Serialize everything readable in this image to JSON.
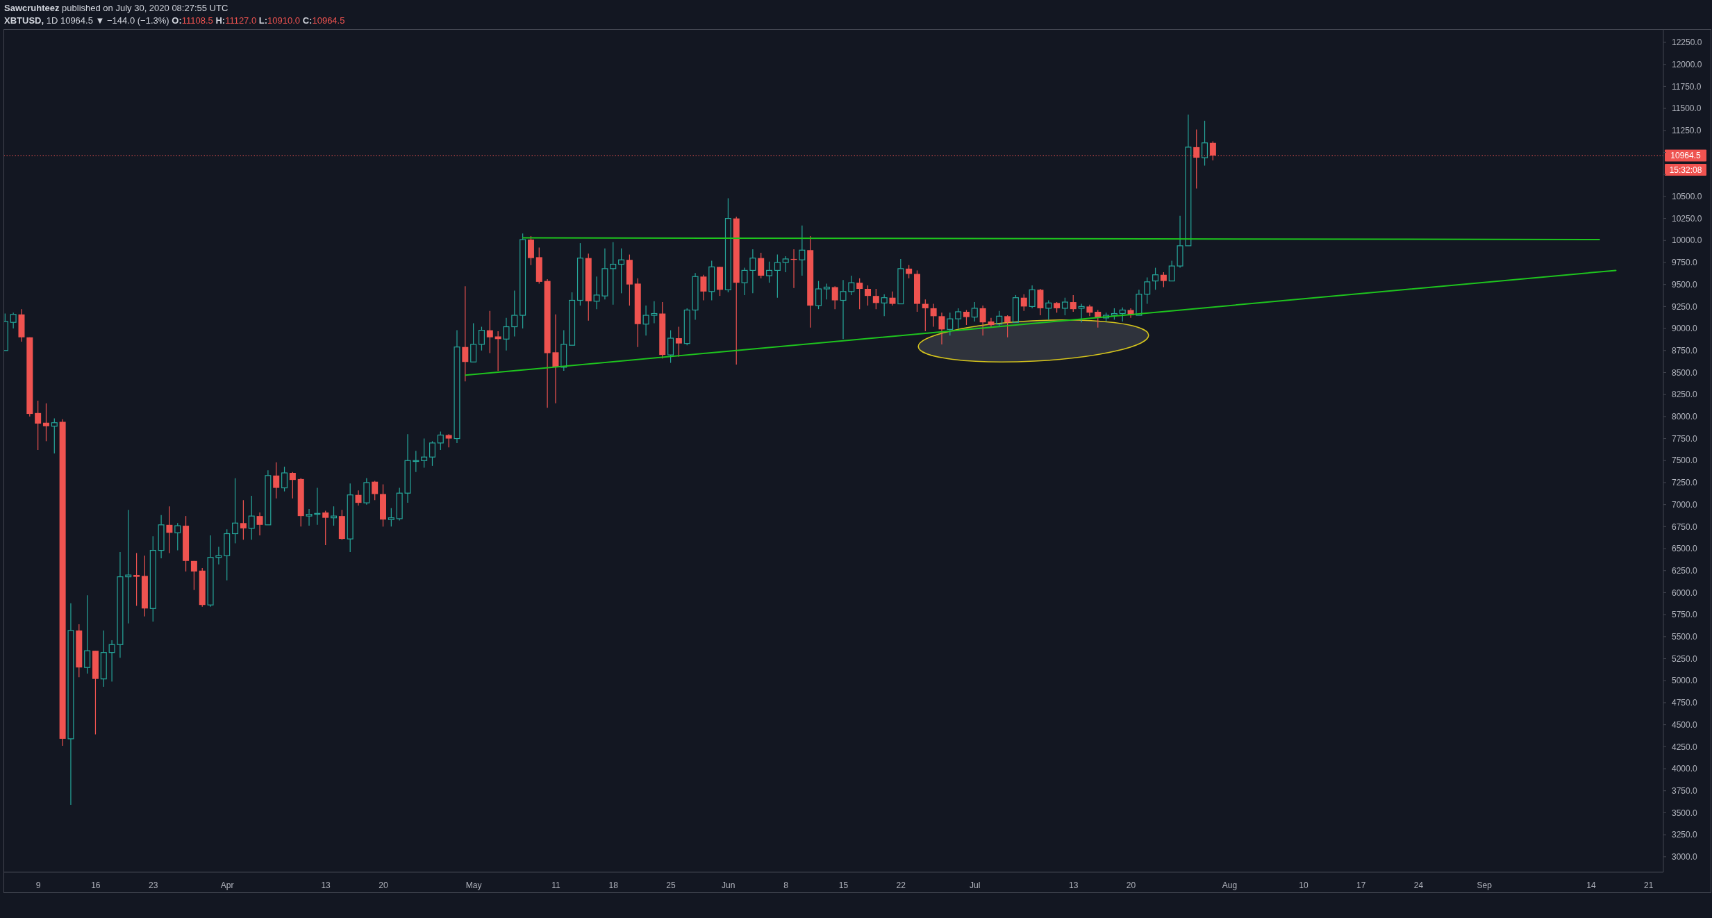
{
  "chart_data": {
    "type": "candlestick",
    "title": "Sawcruhteez published on July 30, 2020 08:27:55 UTC",
    "subtitle": "XBTUSD, 1D 10964.5 ▼ −144.0 (−1.3%) O:11108.5 H:11127.0 L:10910.0 C:10964.5",
    "x": [
      "2020-03-05",
      "2020-03-06",
      "2020-03-07",
      "2020-03-08",
      "2020-03-09",
      "2020-03-10",
      "2020-03-11",
      "2020-03-12",
      "2020-03-13",
      "2020-03-14",
      "2020-03-15",
      "2020-03-16",
      "2020-03-17",
      "2020-03-18",
      "2020-03-19",
      "2020-03-20",
      "2020-03-21",
      "2020-03-22",
      "2020-03-23",
      "2020-03-24",
      "2020-03-25",
      "2020-03-26",
      "2020-03-27",
      "2020-03-28",
      "2020-03-29",
      "2020-03-30",
      "2020-03-31",
      "2020-04-01",
      "2020-04-02",
      "2020-04-03",
      "2020-04-04",
      "2020-04-05",
      "2020-04-06",
      "2020-04-07",
      "2020-04-08",
      "2020-04-09",
      "2020-04-10",
      "2020-04-11",
      "2020-04-12",
      "2020-04-13",
      "2020-04-14",
      "2020-04-15",
      "2020-04-16",
      "2020-04-17",
      "2020-04-18",
      "2020-04-19",
      "2020-04-20",
      "2020-04-21",
      "2020-04-22",
      "2020-04-23",
      "2020-04-24",
      "2020-04-25",
      "2020-04-26",
      "2020-04-27",
      "2020-04-28",
      "2020-04-29",
      "2020-04-30",
      "2020-05-01",
      "2020-05-02",
      "2020-05-03",
      "2020-05-04",
      "2020-05-05",
      "2020-05-06",
      "2020-05-07",
      "2020-05-08",
      "2020-05-09",
      "2020-05-10",
      "2020-05-11",
      "2020-05-12",
      "2020-05-13",
      "2020-05-14",
      "2020-05-15",
      "2020-05-16",
      "2020-05-17",
      "2020-05-18",
      "2020-05-19",
      "2020-05-20",
      "2020-05-21",
      "2020-05-22",
      "2020-05-23",
      "2020-05-24",
      "2020-05-25",
      "2020-05-26",
      "2020-05-27",
      "2020-05-28",
      "2020-05-29",
      "2020-05-30",
      "2020-05-31",
      "2020-06-01",
      "2020-06-02",
      "2020-06-03",
      "2020-06-04",
      "2020-06-05",
      "2020-06-06",
      "2020-06-07",
      "2020-06-08",
      "2020-06-09",
      "2020-06-10",
      "2020-06-11",
      "2020-06-12",
      "2020-06-13",
      "2020-06-14",
      "2020-06-15",
      "2020-06-16",
      "2020-06-17",
      "2020-06-18",
      "2020-06-19",
      "2020-06-20",
      "2020-06-21",
      "2020-06-22",
      "2020-06-23",
      "2020-06-24",
      "2020-06-25",
      "2020-06-26",
      "2020-06-27",
      "2020-06-28",
      "2020-06-29",
      "2020-06-30",
      "2020-07-01",
      "2020-07-02",
      "2020-07-03",
      "2020-07-04",
      "2020-07-05",
      "2020-07-06",
      "2020-07-07",
      "2020-07-08",
      "2020-07-09",
      "2020-07-10",
      "2020-07-11",
      "2020-07-12",
      "2020-07-13",
      "2020-07-14",
      "2020-07-15",
      "2020-07-16",
      "2020-07-17",
      "2020-07-18",
      "2020-07-19",
      "2020-07-20",
      "2020-07-21",
      "2020-07-22",
      "2020-07-23",
      "2020-07-24",
      "2020-07-25",
      "2020-07-26",
      "2020-07-27",
      "2020-07-28",
      "2020-07-29",
      "2020-07-30"
    ],
    "ohlc": [
      [
        8750,
        9170,
        8750,
        9080
      ],
      [
        9070,
        9180,
        9000,
        9160
      ],
      [
        9160,
        9220,
        8850,
        8900
      ],
      [
        8900,
        8900,
        8000,
        8030
      ],
      [
        8040,
        8180,
        7620,
        7920
      ],
      [
        7930,
        8150,
        7720,
        7890
      ],
      [
        7890,
        7980,
        7580,
        7930
      ],
      [
        7940,
        7970,
        4260,
        4340
      ],
      [
        4340,
        5880,
        3590,
        5570
      ],
      [
        5570,
        5640,
        5040,
        5150
      ],
      [
        5150,
        5970,
        5080,
        5340
      ],
      [
        5340,
        5340,
        4390,
        5020
      ],
      [
        5020,
        5570,
        4930,
        5320
      ],
      [
        5320,
        5460,
        4990,
        5410
      ],
      [
        5410,
        6460,
        5260,
        6180
      ],
      [
        6180,
        6940,
        5650,
        6200
      ],
      [
        6200,
        6450,
        5850,
        6180
      ],
      [
        6190,
        6420,
        5730,
        5820
      ],
      [
        5820,
        6640,
        5670,
        6480
      ],
      [
        6480,
        6880,
        6390,
        6770
      ],
      [
        6770,
        6980,
        6450,
        6680
      ],
      [
        6680,
        6790,
        6480,
        6760
      ],
      [
        6760,
        6870,
        6240,
        6360
      ],
      [
        6360,
        6360,
        6030,
        6240
      ],
      [
        6250,
        6280,
        5840,
        5860
      ],
      [
        5860,
        6650,
        5840,
        6400
      ],
      [
        6400,
        6520,
        6320,
        6420
      ],
      [
        6420,
        6720,
        6140,
        6670
      ],
      [
        6670,
        7300,
        6560,
        6790
      ],
      [
        6790,
        7050,
        6600,
        6730
      ],
      [
        6730,
        7100,
        6600,
        6870
      ],
      [
        6870,
        6910,
        6650,
        6770
      ],
      [
        6770,
        7390,
        6760,
        7330
      ],
      [
        7330,
        7480,
        7070,
        7190
      ],
      [
        7190,
        7430,
        7150,
        7360
      ],
      [
        7360,
        7370,
        7070,
        7280
      ],
      [
        7290,
        7300,
        6750,
        6870
      ],
      [
        6870,
        6950,
        6760,
        6890
      ],
      [
        6890,
        7190,
        6770,
        6900
      ],
      [
        6910,
        6930,
        6540,
        6850
      ],
      [
        6850,
        6980,
        6760,
        6870
      ],
      [
        6870,
        6940,
        6600,
        6610
      ],
      [
        6610,
        7240,
        6460,
        7110
      ],
      [
        7110,
        7160,
        6990,
        7020
      ],
      [
        7020,
        7300,
        7000,
        7250
      ],
      [
        7260,
        7270,
        7050,
        7120
      ],
      [
        7120,
        7230,
        6750,
        6830
      ],
      [
        6830,
        6960,
        6750,
        6850
      ],
      [
        6840,
        7190,
        6820,
        7130
      ],
      [
        7130,
        7800,
        7020,
        7500
      ],
      [
        7490,
        7610,
        7370,
        7500
      ],
      [
        7500,
        7750,
        7420,
        7540
      ],
      [
        7540,
        7720,
        7440,
        7700
      ],
      [
        7700,
        7830,
        7620,
        7790
      ],
      [
        7790,
        7800,
        7650,
        7750
      ],
      [
        7750,
        8980,
        7700,
        8790
      ],
      [
        8790,
        9480,
        8400,
        8620
      ],
      [
        8620,
        9060,
        8620,
        8820
      ],
      [
        8820,
        9020,
        8750,
        8980
      ],
      [
        8980,
        9200,
        8720,
        8900
      ],
      [
        8910,
        8970,
        8520,
        8880
      ],
      [
        8880,
        9120,
        8750,
        9020
      ],
      [
        9020,
        9430,
        8910,
        9150
      ],
      [
        9150,
        10080,
        9000,
        10010
      ],
      [
        10010,
        10050,
        9720,
        9800
      ],
      [
        9810,
        9920,
        9510,
        9530
      ],
      [
        9540,
        9560,
        8100,
        8720
      ],
      [
        8730,
        9160,
        8150,
        8560
      ],
      [
        8560,
        8980,
        8520,
        8820
      ],
      [
        8810,
        9410,
        8800,
        9320
      ],
      [
        9320,
        9970,
        9260,
        9800
      ],
      [
        9800,
        9850,
        9090,
        9310
      ],
      [
        9310,
        9590,
        9220,
        9380
      ],
      [
        9370,
        9910,
        9330,
        9680
      ],
      [
        9680,
        9980,
        9270,
        9730
      ],
      [
        9730,
        9910,
        9400,
        9780
      ],
      [
        9780,
        9840,
        9260,
        9500
      ],
      [
        9510,
        9570,
        8790,
        9050
      ],
      [
        9050,
        9260,
        8920,
        9150
      ],
      [
        9150,
        9310,
        9060,
        9170
      ],
      [
        9170,
        9300,
        8660,
        8700
      ],
      [
        8700,
        8980,
        8610,
        8890
      ],
      [
        8890,
        9020,
        8680,
        8830
      ],
      [
        8830,
        9230,
        8810,
        9210
      ],
      [
        9210,
        9630,
        9100,
        9590
      ],
      [
        9590,
        9610,
        9320,
        9420
      ],
      [
        9420,
        9770,
        9320,
        9700
      ],
      [
        9700,
        9700,
        9370,
        9440
      ],
      [
        9440,
        10480,
        9410,
        10250
      ],
      [
        10250,
        10270,
        8590,
        9520
      ],
      [
        9520,
        9690,
        9380,
        9660
      ],
      [
        9660,
        9900,
        9400,
        9800
      ],
      [
        9800,
        9860,
        9570,
        9600
      ],
      [
        9600,
        9760,
        9520,
        9660
      ],
      [
        9660,
        9840,
        9350,
        9750
      ],
      [
        9750,
        9820,
        9640,
        9790
      ],
      [
        9790,
        9900,
        9460,
        9780
      ],
      [
        9780,
        10170,
        9600,
        9890
      ],
      [
        9890,
        10050,
        9010,
        9260
      ],
      [
        9260,
        9540,
        9220,
        9450
      ],
      [
        9450,
        9510,
        9330,
        9470
      ],
      [
        9470,
        9480,
        9220,
        9320
      ],
      [
        9320,
        9550,
        8880,
        9420
      ],
      [
        9420,
        9600,
        9380,
        9520
      ],
      [
        9520,
        9570,
        9220,
        9450
      ],
      [
        9450,
        9490,
        9260,
        9370
      ],
      [
        9370,
        9450,
        9220,
        9290
      ],
      [
        9290,
        9390,
        9140,
        9350
      ],
      [
        9350,
        9420,
        9260,
        9280
      ],
      [
        9280,
        9790,
        9270,
        9680
      ],
      [
        9680,
        9720,
        9570,
        9620
      ],
      [
        9620,
        9660,
        9190,
        9280
      ],
      [
        9280,
        9330,
        8970,
        9230
      ],
      [
        9230,
        9280,
        9020,
        9140
      ],
      [
        9140,
        9180,
        8820,
        8990
      ],
      [
        8990,
        9180,
        8920,
        9110
      ],
      [
        9110,
        9230,
        9000,
        9190
      ],
      [
        9190,
        9210,
        9040,
        9130
      ],
      [
        9130,
        9300,
        9080,
        9230
      ],
      [
        9230,
        9260,
        8920,
        9070
      ],
      [
        9080,
        9120,
        9010,
        9040
      ],
      [
        9050,
        9200,
        9030,
        9140
      ],
      [
        9140,
        9150,
        8900,
        9070
      ],
      [
        9070,
        9380,
        9060,
        9350
      ],
      [
        9350,
        9390,
        9200,
        9250
      ],
      [
        9250,
        9490,
        9230,
        9440
      ],
      [
        9440,
        9450,
        9150,
        9230
      ],
      [
        9230,
        9320,
        9100,
        9290
      ],
      [
        9290,
        9300,
        9180,
        9230
      ],
      [
        9230,
        9350,
        9150,
        9300
      ],
      [
        9300,
        9380,
        9190,
        9220
      ],
      [
        9230,
        9280,
        9070,
        9250
      ],
      [
        9250,
        9270,
        9140,
        9180
      ],
      [
        9190,
        9210,
        9010,
        9120
      ],
      [
        9120,
        9180,
        9080,
        9150
      ],
      [
        9150,
        9230,
        9100,
        9170
      ],
      [
        9170,
        9240,
        9080,
        9210
      ],
      [
        9210,
        9230,
        9120,
        9150
      ],
      [
        9150,
        9440,
        9140,
        9390
      ],
      [
        9390,
        9580,
        9280,
        9530
      ],
      [
        9540,
        9690,
        9440,
        9610
      ],
      [
        9610,
        9640,
        9470,
        9540
      ],
      [
        9540,
        9770,
        9530,
        9710
      ],
      [
        9710,
        10280,
        9690,
        9940
      ],
      [
        9940,
        11430,
        9940,
        11060
      ],
      [
        11060,
        11260,
        10590,
        10940
      ],
      [
        10940,
        11360,
        10850,
        11108.5
      ],
      [
        11108.5,
        11127,
        10910,
        10964.5
      ]
    ],
    "colors": [
      "#26a69a",
      "#26a69a",
      "#ef5350",
      "#ef5350",
      "#ef5350",
      "#ef5350",
      "#26a69a",
      "#ef5350",
      "#26a69a",
      "#ef5350",
      "#26a69a",
      "#ef5350",
      "#26a69a",
      "#26a69a",
      "#26a69a",
      "#26a69a",
      "#ef5350",
      "#ef5350",
      "#26a69a",
      "#26a69a",
      "#ef5350",
      "#26a69a",
      "#ef5350",
      "#ef5350",
      "#ef5350",
      "#26a69a",
      "#26a69a",
      "#26a69a",
      "#26a69a",
      "#ef5350",
      "#26a69a",
      "#ef5350",
      "#26a69a",
      "#ef5350",
      "#26a69a",
      "#ef5350",
      "#ef5350",
      "#26a69a",
      "#26a69a",
      "#ef5350",
      "#26a69a",
      "#ef5350",
      "#26a69a",
      "#ef5350",
      "#26a69a",
      "#ef5350",
      "#ef5350",
      "#26a69a",
      "#26a69a",
      "#26a69a",
      "#26a69a",
      "#26a69a",
      "#26a69a",
      "#26a69a",
      "#ef5350",
      "#26a69a",
      "#ef5350",
      "#26a69a",
      "#26a69a",
      "#ef5350",
      "#ef5350",
      "#26a69a",
      "#26a69a",
      "#26a69a",
      "#ef5350",
      "#ef5350",
      "#ef5350",
      "#ef5350",
      "#26a69a",
      "#26a69a",
      "#26a69a",
      "#ef5350",
      "#26a69a",
      "#26a69a",
      "#26a69a",
      "#26a69a",
      "#ef5350",
      "#ef5350",
      "#26a69a",
      "#26a69a",
      "#ef5350",
      "#26a69a",
      "#ef5350",
      "#26a69a",
      "#26a69a",
      "#ef5350",
      "#26a69a",
      "#ef5350",
      "#26a69a",
      "#ef5350",
      "#26a69a",
      "#26a69a",
      "#ef5350",
      "#26a69a",
      "#26a69a",
      "#26a69a",
      "#ef5350",
      "#26a69a",
      "#ef5350",
      "#26a69a",
      "#26a69a",
      "#ef5350",
      "#26a69a",
      "#26a69a",
      "#ef5350",
      "#ef5350",
      "#ef5350",
      "#26a69a",
      "#ef5350",
      "#26a69a",
      "#ef5350",
      "#ef5350",
      "#ef5350",
      "#ef5350",
      "#ef5350",
      "#26a69a",
      "#26a69a",
      "#ef5350",
      "#26a69a",
      "#ef5350",
      "#ef5350",
      "#26a69a",
      "#ef5350",
      "#26a69a",
      "#ef5350",
      "#26a69a",
      "#ef5350",
      "#26a69a",
      "#ef5350",
      "#26a69a",
      "#ef5350",
      "#26a69a",
      "#ef5350",
      "#ef5350",
      "#26a69a",
      "#26a69a",
      "#26a69a",
      "#ef5350",
      "#26a69a",
      "#26a69a",
      "#26a69a",
      "#ef5350",
      "#26a69a",
      "#26a69a",
      "#26a69a",
      "#ef5350",
      "#26a69a",
      "#ef5350"
    ],
    "series": [
      {
        "type": "line",
        "x": [
          "2020-05-07",
          "2020-09-15"
        ],
        "values": [
          10030,
          10010
        ],
        "color": "#1ec41e"
      },
      {
        "type": "line",
        "x": [
          "2020-04-30",
          "2020-09-17"
        ],
        "values": [
          8470,
          9660
        ],
        "color": "#1ec41e"
      }
    ],
    "ref_lines": [
      {
        "axis": "y",
        "value": 10964.5,
        "label": "10964.5",
        "color": "#ef5350",
        "line_style": "dotted"
      }
    ],
    "annotations": [
      "15:32:08"
    ],
    "xlim": [
      "2020-03-04T20:30",
      "2020-09-22T19:00"
    ],
    "xticks": [
      {
        "value": "2020-03-09",
        "label": "9"
      },
      {
        "value": "2020-03-16",
        "label": "16"
      },
      {
        "value": "2020-03-23",
        "label": "23"
      },
      {
        "value": "2020-04-01",
        "label": "Apr"
      },
      {
        "value": "2020-04-13",
        "label": "13"
      },
      {
        "value": "2020-04-20",
        "label": "20"
      },
      {
        "value": "2020-05-01",
        "label": "May"
      },
      {
        "value": "2020-05-11",
        "label": "11"
      },
      {
        "value": "2020-05-18",
        "label": "18"
      },
      {
        "value": "2020-05-25",
        "label": "25"
      },
      {
        "value": "2020-06-01",
        "label": "Jun"
      },
      {
        "value": "2020-06-08",
        "label": "8"
      },
      {
        "value": "2020-06-15",
        "label": "15"
      },
      {
        "value": "2020-06-22",
        "label": "22"
      },
      {
        "value": "2020-07-01",
        "label": "Jul"
      },
      {
        "value": "2020-07-13",
        "label": "13"
      },
      {
        "value": "2020-07-20",
        "label": "20"
      },
      {
        "value": "2020-08-01",
        "label": "Aug"
      },
      {
        "value": "2020-08-10",
        "label": "10"
      },
      {
        "value": "2020-08-17",
        "label": "17"
      },
      {
        "value": "2020-08-24",
        "label": "24"
      },
      {
        "value": "2020-09-01",
        "label": "Sep"
      },
      {
        "value": "2020-09-14",
        "label": "14"
      },
      {
        "value": "2020-09-21",
        "label": "21"
      }
    ],
    "ylim": [
      2825,
      12400
    ],
    "yticks": [
      {
        "value": 3000,
        "label": "3000.0"
      },
      {
        "value": 3250,
        "label": "3250.0"
      },
      {
        "value": 3500,
        "label": "3500.0"
      },
      {
        "value": 3750,
        "label": "3750.0"
      },
      {
        "value": 4000,
        "label": "4000.0"
      },
      {
        "value": 4250,
        "label": "4250.0"
      },
      {
        "value": 4500,
        "label": "4500.0"
      },
      {
        "value": 4750,
        "label": "4750.0"
      },
      {
        "value": 5000,
        "label": "5000.0"
      },
      {
        "value": 5250,
        "label": "5250.0"
      },
      {
        "value": 5500,
        "label": "5500.0"
      },
      {
        "value": 5750,
        "label": "5750.0"
      },
      {
        "value": 6000,
        "label": "6000.0"
      },
      {
        "value": 6250,
        "label": "6250.0"
      },
      {
        "value": 6500,
        "label": "6500.0"
      },
      {
        "value": 6750,
        "label": "6750.0"
      },
      {
        "value": 7000,
        "label": "7000.0"
      },
      {
        "value": 7250,
        "label": "7250.0"
      },
      {
        "value": 7500,
        "label": "7500.0"
      },
      {
        "value": 7750,
        "label": "7750.0"
      },
      {
        "value": 8000,
        "label": "8000.0"
      },
      {
        "value": 8250,
        "label": "8250.0"
      },
      {
        "value": 8500,
        "label": "8500.0"
      },
      {
        "value": 8750,
        "label": "8750.0"
      },
      {
        "value": 9000,
        "label": "9000.0"
      },
      {
        "value": 9250,
        "label": "9250.0"
      },
      {
        "value": 9500,
        "label": "9500.0"
      },
      {
        "value": 9750,
        "label": "9750.0"
      },
      {
        "value": 10000,
        "label": "10000.0"
      },
      {
        "value": 10250,
        "label": "10250.0"
      },
      {
        "value": 10500,
        "label": "10500.0"
      },
      {
        "value": 10750,
        "label": null
      },
      {
        "value": 11000,
        "label": null
      },
      {
        "value": 11250,
        "label": "11250.0"
      },
      {
        "value": 11500,
        "label": "11500.0"
      },
      {
        "value": 11750,
        "label": "11750.0"
      },
      {
        "value": 12000,
        "label": "12000.0"
      },
      {
        "value": 12250,
        "label": "12250.0"
      }
    ]
  }
}
